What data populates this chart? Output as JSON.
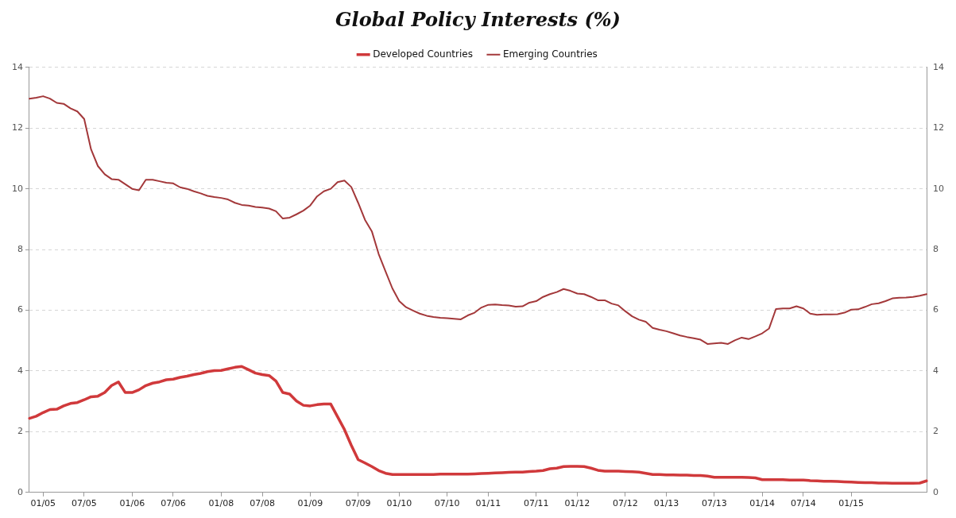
{
  "chart_data": {
    "type": "line",
    "title": "Global Policy Interests (%)",
    "categories": [
      null,
      null,
      "01/05",
      null,
      null,
      null,
      null,
      null,
      "07/05",
      null,
      null,
      null,
      null,
      null,
      null,
      "01/06",
      null,
      null,
      null,
      null,
      null,
      "07/06",
      null,
      null,
      null,
      null,
      null,
      null,
      "01/08",
      null,
      null,
      null,
      null,
      null,
      "07/08",
      null,
      null,
      null,
      null,
      null,
      null,
      "01/09",
      null,
      null,
      null,
      null,
      null,
      null,
      "07/09",
      null,
      null,
      null,
      null,
      null,
      "01/10",
      null,
      null,
      null,
      null,
      null,
      null,
      "07/10",
      null,
      null,
      null,
      null,
      null,
      "01/11",
      null,
      null,
      null,
      null,
      null,
      null,
      "07/11",
      null,
      null,
      null,
      null,
      null,
      "01/12",
      null,
      null,
      null,
      null,
      null,
      null,
      "07/12",
      null,
      null,
      null,
      null,
      null,
      "01/13",
      null,
      null,
      null,
      null,
      null,
      null,
      "07/13",
      null,
      null,
      null,
      null,
      null,
      null,
      "01/14",
      null,
      null,
      null,
      null,
      null,
      "07/14",
      null,
      null,
      null,
      null,
      null,
      null,
      "01/15",
      null,
      null,
      null,
      null,
      null,
      null,
      null,
      null,
      null,
      null,
      null
    ],
    "series": [
      {
        "name": "Developed Countries",
        "color": "#d0393b",
        "values": [
          2.44,
          2.51,
          2.63,
          2.73,
          2.74,
          2.85,
          2.93,
          2.96,
          3.05,
          3.15,
          3.17,
          3.29,
          3.52,
          3.64,
          3.29,
          3.29,
          3.38,
          3.52,
          3.6,
          3.64,
          3.71,
          3.73,
          3.79,
          3.83,
          3.88,
          3.92,
          3.98,
          4.01,
          4.02,
          4.07,
          4.12,
          4.15,
          4.04,
          3.93,
          3.88,
          3.85,
          3.67,
          3.29,
          3.24,
          3.01,
          2.87,
          2.85,
          2.89,
          2.91,
          2.91,
          2.49,
          2.07,
          1.55,
          1.08,
          0.97,
          0.85,
          0.72,
          0.63,
          0.59,
          0.59,
          0.59,
          0.59,
          0.59,
          0.59,
          0.59,
          0.6,
          0.6,
          0.6,
          0.6,
          0.6,
          0.61,
          0.62,
          0.63,
          0.64,
          0.65,
          0.66,
          0.67,
          0.67,
          0.69,
          0.7,
          0.72,
          0.78,
          0.8,
          0.85,
          0.86,
          0.86,
          0.85,
          0.8,
          0.73,
          0.7,
          0.7,
          0.7,
          0.69,
          0.68,
          0.67,
          0.63,
          0.59,
          0.59,
          0.58,
          0.58,
          0.57,
          0.57,
          0.56,
          0.56,
          0.54,
          0.5,
          0.5,
          0.5,
          0.5,
          0.5,
          0.49,
          0.48,
          0.42,
          0.42,
          0.42,
          0.42,
          0.41,
          0.41,
          0.41,
          0.39,
          0.38,
          0.37,
          0.37,
          0.36,
          0.35,
          0.34,
          0.33,
          0.32,
          0.32,
          0.31,
          0.31,
          0.3,
          0.3,
          0.3,
          0.3,
          0.31,
          0.38
        ]
      },
      {
        "name": "Emerging Countries",
        "color": "#a3383a",
        "values": [
          12.97,
          13.0,
          13.05,
          12.97,
          12.83,
          12.8,
          12.65,
          12.55,
          12.3,
          11.3,
          10.75,
          10.48,
          10.32,
          10.3,
          10.15,
          10.0,
          9.95,
          10.3,
          10.3,
          10.25,
          10.2,
          10.18,
          10.05,
          10.0,
          9.92,
          9.85,
          9.77,
          9.73,
          9.7,
          9.65,
          9.54,
          9.47,
          9.45,
          9.4,
          9.38,
          9.35,
          9.26,
          9.02,
          9.05,
          9.16,
          9.28,
          9.45,
          9.75,
          9.92,
          10.0,
          10.22,
          10.27,
          10.06,
          9.54,
          8.98,
          8.6,
          7.85,
          7.28,
          6.72,
          6.3,
          6.1,
          5.99,
          5.89,
          5.82,
          5.78,
          5.75,
          5.74,
          5.72,
          5.7,
          5.83,
          5.92,
          6.09,
          6.18,
          6.19,
          6.17,
          6.16,
          6.12,
          6.13,
          6.25,
          6.3,
          6.44,
          6.53,
          6.6,
          6.7,
          6.64,
          6.55,
          6.53,
          6.44,
          6.33,
          6.33,
          6.22,
          6.16,
          5.97,
          5.8,
          5.69,
          5.62,
          5.42,
          5.36,
          5.31,
          5.24,
          5.17,
          5.12,
          5.08,
          5.03,
          4.89,
          4.91,
          4.93,
          4.89,
          5.01,
          5.1,
          5.05,
          5.14,
          5.24,
          5.4,
          6.04,
          6.06,
          6.06,
          6.13,
          6.06,
          5.89,
          5.85,
          5.86,
          5.86,
          5.87,
          5.92,
          6.02,
          6.03,
          6.11,
          6.2,
          6.23,
          6.3,
          6.39,
          6.41,
          6.42,
          6.44,
          6.48,
          6.53
        ]
      }
    ],
    "ylim": [
      0,
      14
    ],
    "yticks": [
      0,
      2,
      4,
      6,
      8,
      10,
      12,
      14
    ],
    "y2lim": [
      0,
      14
    ],
    "y2ticks": [
      0,
      2,
      4,
      6,
      8,
      10,
      12,
      14
    ],
    "grid": "y",
    "legend": "top",
    "marker": "none",
    "line_style": "solid"
  }
}
